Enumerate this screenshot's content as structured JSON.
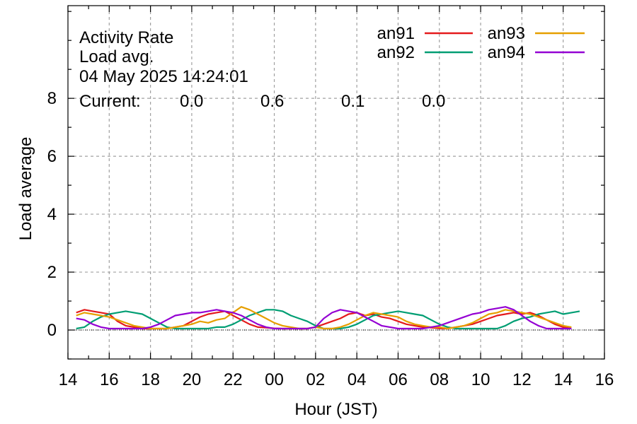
{
  "chart_data": {
    "type": "line",
    "title_lines": [
      "Activity Rate",
      "Load avg.",
      "04 May 2025 14:24:01"
    ],
    "current_label": "Current:",
    "xlabel": "Hour (JST)",
    "ylabel": "Load average",
    "xlim": [
      14,
      40
    ],
    "ylim": [
      -1,
      11.2
    ],
    "x_ticks": [
      14,
      16,
      18,
      20,
      22,
      24,
      26,
      28,
      30,
      32,
      34,
      36,
      38,
      40
    ],
    "x_tick_labels": [
      "14",
      "16",
      "18",
      "20",
      "22",
      "00",
      "02",
      "04",
      "06",
      "08",
      "10",
      "12",
      "14",
      "16"
    ],
    "y_ticks": [
      0,
      2,
      4,
      6,
      8
    ],
    "y_tick_labels": [
      "0",
      "2",
      "4",
      "6",
      "8"
    ],
    "grid": true,
    "legend_position": "top-right",
    "series": [
      {
        "name": "an91",
        "color": "#e41a1c",
        "current": "0.0",
        "x": [
          14.4,
          14.8,
          15.2,
          15.6,
          16.0,
          16.4,
          16.8,
          17.2,
          17.6,
          18.0,
          18.4,
          18.8,
          19.2,
          19.6,
          20.0,
          20.4,
          20.8,
          21.2,
          21.6,
          22.0,
          22.4,
          22.8,
          23.2,
          23.6,
          24.0,
          24.4,
          24.8,
          25.2,
          25.6,
          26.0,
          26.4,
          26.8,
          27.2,
          27.6,
          28.0,
          28.4,
          28.8,
          29.2,
          29.6,
          30.0,
          30.4,
          30.8,
          31.2,
          31.6,
          32.0,
          32.4,
          32.8,
          33.2,
          33.6,
          34.0,
          34.4,
          34.8,
          35.2,
          35.6,
          36.0,
          36.4,
          36.8,
          37.2,
          37.6,
          38.0,
          38.4
        ],
        "values": [
          0.6,
          0.7,
          0.65,
          0.6,
          0.55,
          0.3,
          0.15,
          0.1,
          0.05,
          0.05,
          0.05,
          0.05,
          0.1,
          0.15,
          0.3,
          0.45,
          0.55,
          0.6,
          0.65,
          0.5,
          0.35,
          0.2,
          0.1,
          0.08,
          0.06,
          0.05,
          0.05,
          0.05,
          0.05,
          0.1,
          0.2,
          0.3,
          0.4,
          0.55,
          0.6,
          0.5,
          0.55,
          0.45,
          0.4,
          0.3,
          0.2,
          0.15,
          0.1,
          0.08,
          0.06,
          0.05,
          0.1,
          0.15,
          0.2,
          0.3,
          0.4,
          0.5,
          0.55,
          0.6,
          0.55,
          0.6,
          0.5,
          0.35,
          0.2,
          0.1,
          0.05
        ]
      },
      {
        "name": "an92",
        "color": "#009e73",
        "current": "0.6",
        "x": [
          14.4,
          14.8,
          15.2,
          15.6,
          16.0,
          16.4,
          16.8,
          17.2,
          17.6,
          18.0,
          18.4,
          18.8,
          19.2,
          19.6,
          20.0,
          20.4,
          20.8,
          21.2,
          21.6,
          22.0,
          22.4,
          22.8,
          23.2,
          23.6,
          24.0,
          24.4,
          24.8,
          25.2,
          25.6,
          26.0,
          26.4,
          26.8,
          27.2,
          27.6,
          28.0,
          28.4,
          28.8,
          29.2,
          29.6,
          30.0,
          30.4,
          30.8,
          31.2,
          31.6,
          32.0,
          32.4,
          32.8,
          33.2,
          33.6,
          34.0,
          34.4,
          34.8,
          35.2,
          35.6,
          36.0,
          36.4,
          36.8,
          37.2,
          37.6,
          38.0,
          38.4,
          38.8
        ],
        "values": [
          0.05,
          0.1,
          0.3,
          0.45,
          0.55,
          0.6,
          0.65,
          0.6,
          0.55,
          0.4,
          0.25,
          0.1,
          0.05,
          0.05,
          0.05,
          0.05,
          0.05,
          0.1,
          0.1,
          0.2,
          0.35,
          0.5,
          0.6,
          0.7,
          0.7,
          0.65,
          0.5,
          0.4,
          0.3,
          0.15,
          0.05,
          0.05,
          0.05,
          0.1,
          0.2,
          0.35,
          0.5,
          0.55,
          0.6,
          0.65,
          0.6,
          0.55,
          0.5,
          0.35,
          0.2,
          0.1,
          0.05,
          0.05,
          0.05,
          0.05,
          0.05,
          0.05,
          0.15,
          0.3,
          0.4,
          0.45,
          0.55,
          0.6,
          0.65,
          0.55,
          0.6,
          0.65
        ]
      },
      {
        "name": "an93",
        "color": "#e69f00",
        "current": "0.1",
        "x": [
          14.4,
          14.8,
          15.2,
          15.6,
          16.0,
          16.4,
          16.8,
          17.2,
          17.6,
          18.0,
          18.4,
          18.8,
          19.2,
          19.6,
          20.0,
          20.4,
          20.8,
          21.2,
          21.6,
          22.0,
          22.4,
          22.8,
          23.2,
          23.6,
          24.0,
          24.4,
          24.8,
          25.2,
          25.6,
          26.0,
          26.4,
          26.8,
          27.2,
          27.6,
          28.0,
          28.4,
          28.8,
          29.2,
          29.6,
          30.0,
          30.4,
          30.8,
          31.2,
          31.6,
          32.0,
          32.4,
          32.8,
          33.2,
          33.6,
          34.0,
          34.4,
          34.8,
          35.2,
          35.6,
          36.0,
          36.4,
          36.8,
          37.2,
          37.6,
          38.0,
          38.4
        ],
        "values": [
          0.5,
          0.6,
          0.55,
          0.5,
          0.45,
          0.35,
          0.25,
          0.15,
          0.1,
          0.05,
          0.05,
          0.05,
          0.1,
          0.15,
          0.2,
          0.3,
          0.25,
          0.35,
          0.4,
          0.6,
          0.8,
          0.7,
          0.55,
          0.4,
          0.25,
          0.15,
          0.1,
          0.05,
          0.05,
          0.1,
          0.05,
          0.05,
          0.1,
          0.2,
          0.35,
          0.5,
          0.6,
          0.55,
          0.5,
          0.45,
          0.3,
          0.2,
          0.15,
          0.1,
          0.1,
          0.05,
          0.1,
          0.15,
          0.25,
          0.4,
          0.55,
          0.6,
          0.7,
          0.65,
          0.6,
          0.55,
          0.45,
          0.35,
          0.25,
          0.15,
          0.1
        ]
      },
      {
        "name": "an94",
        "color": "#9400d3",
        "current": "0.0",
        "x": [
          14.4,
          14.8,
          15.2,
          15.6,
          16.0,
          16.4,
          16.8,
          17.2,
          17.6,
          18.0,
          18.4,
          18.8,
          19.2,
          19.6,
          20.0,
          20.4,
          20.8,
          21.2,
          21.6,
          22.0,
          22.4,
          22.8,
          23.2,
          23.6,
          24.0,
          24.4,
          24.8,
          25.2,
          25.6,
          26.0,
          26.4,
          26.8,
          27.2,
          27.6,
          28.0,
          28.4,
          28.8,
          29.2,
          29.6,
          30.0,
          30.4,
          30.8,
          31.2,
          31.6,
          32.0,
          32.4,
          32.8,
          33.2,
          33.6,
          34.0,
          34.4,
          34.8,
          35.2,
          35.6,
          36.0,
          36.4,
          36.8,
          37.2,
          37.6,
          38.0,
          38.4
        ],
        "values": [
          0.4,
          0.35,
          0.2,
          0.1,
          0.05,
          0.05,
          0.05,
          0.05,
          0.05,
          0.1,
          0.2,
          0.35,
          0.5,
          0.55,
          0.6,
          0.6,
          0.65,
          0.7,
          0.65,
          0.6,
          0.5,
          0.35,
          0.2,
          0.1,
          0.05,
          0.05,
          0.05,
          0.05,
          0.05,
          0.1,
          0.4,
          0.6,
          0.7,
          0.65,
          0.6,
          0.45,
          0.3,
          0.15,
          0.1,
          0.05,
          0.05,
          0.05,
          0.05,
          0.1,
          0.15,
          0.25,
          0.35,
          0.45,
          0.55,
          0.6,
          0.7,
          0.75,
          0.8,
          0.7,
          0.5,
          0.3,
          0.15,
          0.05,
          0.05,
          0.05,
          0.05
        ]
      }
    ]
  }
}
